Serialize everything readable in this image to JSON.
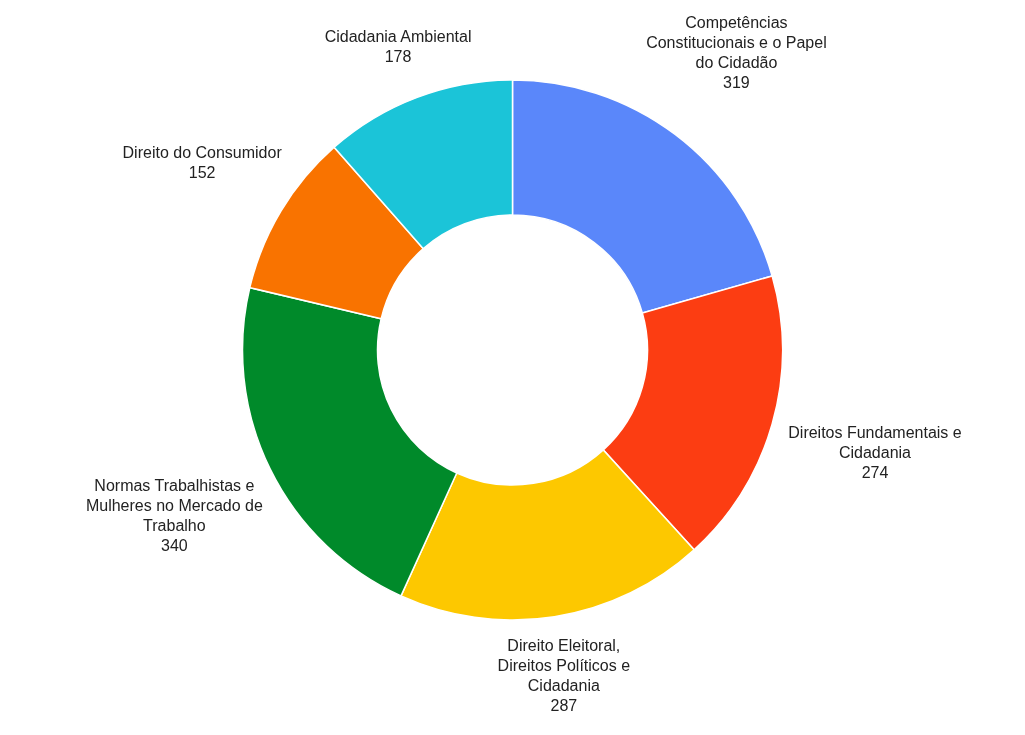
{
  "chart_data": {
    "type": "donut",
    "categories": [
      "Competências Constitucionais e o Papel do Cidadão",
      "Direitos Fundamentais e Cidadania",
      "Direito Eleitoral, Direitos Políticos e Cidadania",
      "Normas Trabalhistas e Mulheres no Mercado de Trabalho",
      "Direito do Consumidor",
      "Cidadania Ambiental"
    ],
    "values": [
      319,
      274,
      287,
      340,
      152,
      178
    ],
    "colors": [
      "#5a87fa",
      "#fc3d12",
      "#fdc800",
      "#008a2a",
      "#f97300",
      "#1bc4d8"
    ],
    "data_labels": true
  }
}
